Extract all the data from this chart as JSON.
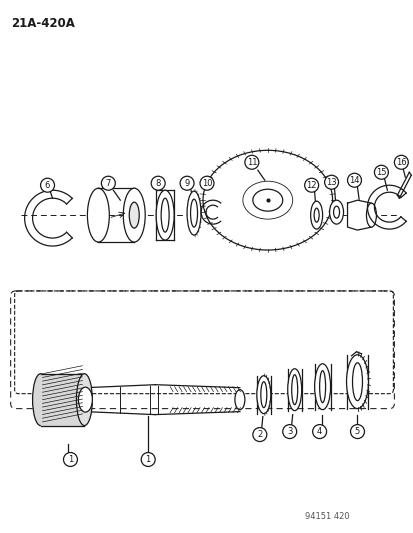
{
  "title": "21A-420A",
  "footer": "94151 420",
  "bg_color": "#ffffff",
  "line_color": "#1a1a1a",
  "fig_width": 4.14,
  "fig_height": 5.33,
  "dpi": 100
}
